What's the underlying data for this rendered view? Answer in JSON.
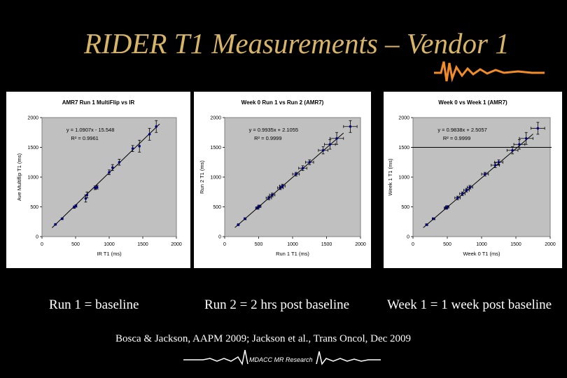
{
  "slide": {
    "title": "RIDER T1 Measurements – Vendor 1",
    "footer_text": "MDACC MR Research",
    "citation": "Bosca & Jackson, AAPM 2009;   Jackson et al., Trans Oncol, Dec 2009",
    "captions": [
      "Run 1 = baseline",
      "Run 2 = 2 hrs post baseline",
      "Week 1 = 1 week post baseline"
    ],
    "colors": {
      "background": "#000000",
      "title": "#d8b468",
      "plot_area": "#c0c0c0",
      "points": "#000080",
      "decoration_start": "#3333cc",
      "decoration_end": "#f28c28"
    }
  },
  "chart_data": [
    {
      "type": "scatter",
      "title": "AMR7 Run 1 MultiFlip vs IR",
      "xlabel": "IR T1 (ms)",
      "ylabel": "Ave Multiflip T1 (ms)",
      "xlim": [
        0,
        2000
      ],
      "ylim": [
        0,
        2000
      ],
      "xticks": [
        "0",
        "500",
        "1000",
        "1500",
        "2000"
      ],
      "yticks": [
        "0",
        "500",
        "1000",
        "1500",
        "2000"
      ],
      "equation": "y = 1.0907x - 15.548",
      "r2": "R² = 0.9961",
      "fit": {
        "slope": 1.0907,
        "intercept": -15.548
      },
      "points": [
        {
          "x": 200,
          "y": 205,
          "ex": 0,
          "ey": 10
        },
        {
          "x": 300,
          "y": 300,
          "ex": 0,
          "ey": 15
        },
        {
          "x": 480,
          "y": 495,
          "ex": 0,
          "ey": 20
        },
        {
          "x": 505,
          "y": 515,
          "ex": 0,
          "ey": 20
        },
        {
          "x": 650,
          "y": 640,
          "ex": 0,
          "ey": 60
        },
        {
          "x": 670,
          "y": 700,
          "ex": 0,
          "ey": 50
        },
        {
          "x": 790,
          "y": 820,
          "ex": 0,
          "ey": 30
        },
        {
          "x": 820,
          "y": 830,
          "ex": 0,
          "ey": 30
        },
        {
          "x": 1000,
          "y": 1080,
          "ex": 0,
          "ey": 40
        },
        {
          "x": 1050,
          "y": 1160,
          "ex": 0,
          "ey": 50
        },
        {
          "x": 1150,
          "y": 1250,
          "ex": 0,
          "ey": 50
        },
        {
          "x": 1350,
          "y": 1480,
          "ex": 0,
          "ey": 50
        },
        {
          "x": 1450,
          "y": 1520,
          "ex": 0,
          "ey": 100
        },
        {
          "x": 1600,
          "y": 1720,
          "ex": 0,
          "ey": 100
        },
        {
          "x": 1700,
          "y": 1850,
          "ex": 0,
          "ey": 100
        }
      ],
      "grid": false
    },
    {
      "type": "scatter",
      "title": "Week 0 Run 1 vs Run 2 (AMR7)",
      "xlabel": "Run 1 T1 (ms)",
      "ylabel": "Run 2 T1 (ms)",
      "xlim": [
        0,
        2000
      ],
      "ylim": [
        0,
        2000
      ],
      "xticks": [
        "0",
        "500",
        "1000",
        "1500",
        "2000"
      ],
      "yticks": [
        "0",
        "500",
        "1000",
        "1500",
        "2000"
      ],
      "equation": "y = 0.9935x + 2.1055",
      "r2": "R² = 0.9999",
      "fit": {
        "slope": 0.9935,
        "intercept": 2.1055
      },
      "points": [
        {
          "x": 200,
          "y": 200,
          "ex": 10,
          "ey": 10
        },
        {
          "x": 300,
          "y": 300,
          "ex": 15,
          "ey": 15
        },
        {
          "x": 480,
          "y": 480,
          "ex": 25,
          "ey": 20
        },
        {
          "x": 510,
          "y": 510,
          "ex": 25,
          "ey": 20
        },
        {
          "x": 650,
          "y": 650,
          "ex": 40,
          "ey": 30
        },
        {
          "x": 700,
          "y": 700,
          "ex": 40,
          "ey": 30
        },
        {
          "x": 820,
          "y": 820,
          "ex": 40,
          "ey": 30
        },
        {
          "x": 850,
          "y": 850,
          "ex": 40,
          "ey": 30
        },
        {
          "x": 1050,
          "y": 1050,
          "ex": 50,
          "ey": 30
        },
        {
          "x": 1150,
          "y": 1150,
          "ex": 60,
          "ey": 40
        },
        {
          "x": 1250,
          "y": 1250,
          "ex": 60,
          "ey": 40
        },
        {
          "x": 1450,
          "y": 1450,
          "ex": 70,
          "ey": 60
        },
        {
          "x": 1550,
          "y": 1550,
          "ex": 80,
          "ey": 80
        },
        {
          "x": 1650,
          "y": 1650,
          "ex": 100,
          "ey": 100
        },
        {
          "x": 1850,
          "y": 1850,
          "ex": 100,
          "ey": 100
        }
      ],
      "grid": false
    },
    {
      "type": "scatter",
      "title": "Week 0 vs Week 1 (AMR7)",
      "xlabel": "Week 0 T1 (ms)",
      "ylabel": "Week 1 T1 (ms)",
      "xlim": [
        0,
        2000
      ],
      "ylim": [
        0,
        2000
      ],
      "xticks": [
        "0",
        "500",
        "1000",
        "1500",
        "2000"
      ],
      "yticks": [
        "0",
        "500",
        "1000",
        "1500",
        "2000"
      ],
      "equation": "y = 0.9838x + 2.5057",
      "r2": "R² = 0.9999",
      "fit": {
        "slope": 0.9838,
        "intercept": 2.5057
      },
      "hline": 1500,
      "points": [
        {
          "x": 200,
          "y": 200,
          "ex": 15,
          "ey": 10
        },
        {
          "x": 300,
          "y": 300,
          "ex": 20,
          "ey": 15
        },
        {
          "x": 480,
          "y": 480,
          "ex": 25,
          "ey": 20
        },
        {
          "x": 500,
          "y": 500,
          "ex": 25,
          "ey": 20
        },
        {
          "x": 650,
          "y": 650,
          "ex": 40,
          "ey": 30
        },
        {
          "x": 720,
          "y": 720,
          "ex": 40,
          "ey": 30
        },
        {
          "x": 780,
          "y": 780,
          "ex": 40,
          "ey": 30
        },
        {
          "x": 830,
          "y": 830,
          "ex": 40,
          "ey": 30
        },
        {
          "x": 1050,
          "y": 1050,
          "ex": 50,
          "ey": 30
        },
        {
          "x": 1200,
          "y": 1200,
          "ex": 60,
          "ey": 40
        },
        {
          "x": 1250,
          "y": 1250,
          "ex": 60,
          "ey": 40
        },
        {
          "x": 1450,
          "y": 1450,
          "ex": 80,
          "ey": 60
        },
        {
          "x": 1550,
          "y": 1550,
          "ex": 80,
          "ey": 80
        },
        {
          "x": 1650,
          "y": 1650,
          "ex": 100,
          "ey": 100
        },
        {
          "x": 1820,
          "y": 1820,
          "ex": 100,
          "ey": 100
        }
      ],
      "grid": false
    }
  ]
}
